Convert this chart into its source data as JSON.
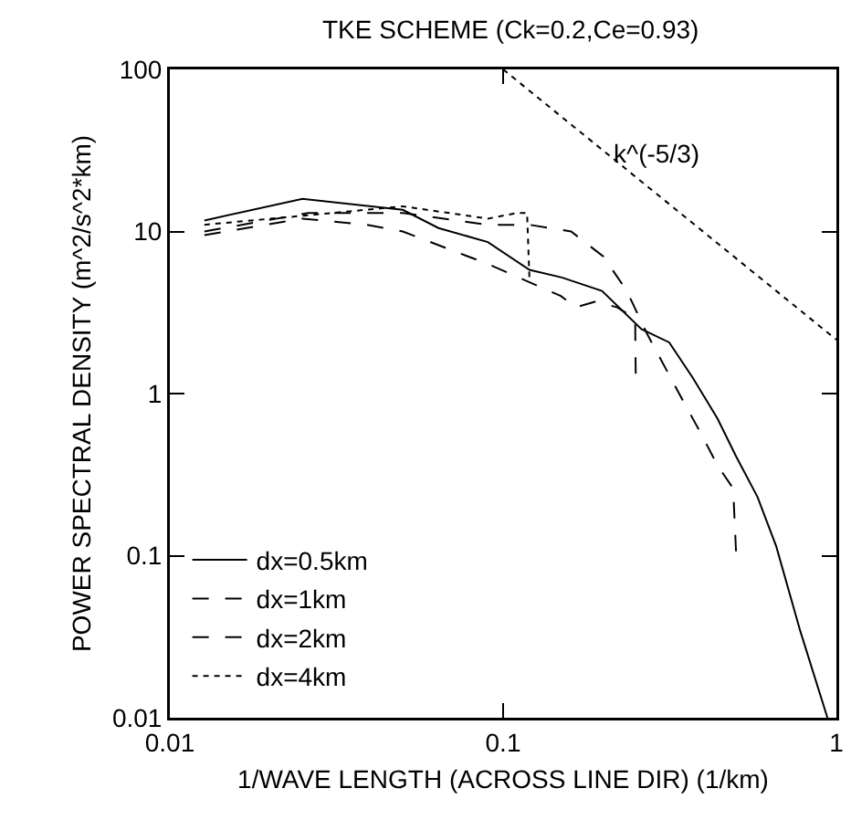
{
  "chart_data": {
    "type": "line",
    "title": "TKE SCHEME (Ck=0.2,Ce=0.93)",
    "xlabel": "1/WAVE LENGTH (ACROSS LINE DIR) (1/km)",
    "ylabel": "POWER SPECTRAL DENSITY (m^2/s^2*km)",
    "log": "xy",
    "xlim": [
      0.01,
      1
    ],
    "ylim": [
      0.01,
      100
    ],
    "xticks": [
      0.01,
      0.1,
      1
    ],
    "yticks": [
      0.01,
      0.1,
      1,
      10,
      100
    ],
    "grid": false,
    "legend": "bottom left",
    "marker": "none",
    "annotations": [
      "k^(-5/3)"
    ],
    "series": [
      {
        "name": "dx=0.5km",
        "color": "#000000",
        "line_style": "solid",
        "x": [
          0.0127,
          0.025,
          0.05,
          0.064,
          0.09,
          0.12,
          0.15,
          0.198,
          0.26,
          0.315,
          0.37,
          0.44,
          0.5,
          0.58,
          0.66,
          0.78,
          0.94
        ],
        "values": [
          11.7,
          15.9,
          13.6,
          10.5,
          8.6,
          5.8,
          5.2,
          4.3,
          2.5,
          2.07,
          1.26,
          0.7,
          0.41,
          0.23,
          0.114,
          0.034,
          0.01
        ]
      },
      {
        "name": "dx=1km",
        "color": "#000000",
        "line_style": "dashed",
        "x": [
          0.0127,
          0.026,
          0.05,
          0.09,
          0.12,
          0.16,
          0.2,
          0.235,
          0.27,
          0.34,
          0.39,
          0.44,
          0.49,
          0.5
        ],
        "values": [
          10,
          13,
          13,
          11,
          11,
          10,
          7,
          4.3,
          2.35,
          0.97,
          0.58,
          0.36,
          0.26,
          0.105
        ]
      },
      {
        "name": "dx=2km",
        "color": "#000000",
        "line_style": "dashed",
        "x": [
          0.0127,
          0.025,
          0.039,
          0.05,
          0.09,
          0.149,
          0.165,
          0.19,
          0.22,
          0.249,
          0.25
        ],
        "values": [
          9.5,
          12,
          11,
          10,
          6.3,
          4,
          3.4,
          3.7,
          3.4,
          2.9,
          1.3
        ]
      },
      {
        "name": "dx=4km",
        "color": "#000000",
        "line_style": "dotted",
        "x": [
          0.0127,
          0.025,
          0.05,
          0.09,
          0.11,
          0.118,
          0.12
        ],
        "values": [
          11,
          12.5,
          14.3,
          12,
          13,
          13,
          5
        ]
      },
      {
        "type": "line",
        "color": "#000000",
        "line_style": "dotted",
        "x": [
          0.1,
          1
        ],
        "values": [
          100,
          2.15
        ]
      }
    ]
  }
}
